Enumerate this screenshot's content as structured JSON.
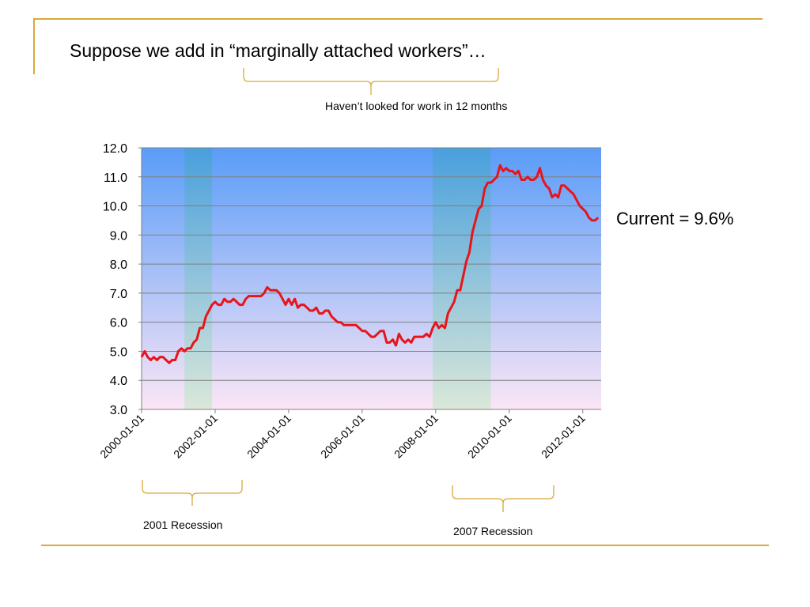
{
  "slide": {
    "title": "Suppose we add in “marginally attached workers”…",
    "bracket_note": "Haven’t looked for work in 12 months",
    "current_label": "Current = 9.6%",
    "recession_labels": [
      "2001 Recession",
      "2007 Recession"
    ]
  },
  "colors": {
    "accent": "#dba83a",
    "line": "#e8141b",
    "plot_top": "#5a9cf8",
    "plot_bottom": "#fbe6f6",
    "recession_top": "#46a0d8",
    "recession_bottom": "#d4e8d4",
    "gridline": "#808080"
  },
  "chart_data": {
    "type": "line",
    "title": "",
    "xlabel": "",
    "ylabel": "",
    "ylim": [
      3.0,
      12.0
    ],
    "yticks": [
      "3.0",
      "4.0",
      "5.0",
      "6.0",
      "7.0",
      "8.0",
      "9.0",
      "10.0",
      "11.0",
      "12.0"
    ],
    "xticks": [
      "2000-01-01",
      "2002-01-01",
      "2004-01-01",
      "2006-01-01",
      "2008-01-01",
      "2010-01-01",
      "2012-01-01"
    ],
    "grid": true,
    "legend": "none",
    "recessions": [
      {
        "start": "2001-03",
        "end": "2001-11"
      },
      {
        "start": "2007-12",
        "end": "2009-06"
      }
    ],
    "series": [
      {
        "x": [
          "2000-01",
          "2000-02",
          "2000-03",
          "2000-04",
          "2000-05",
          "2000-06",
          "2000-07",
          "2000-08",
          "2000-09",
          "2000-10",
          "2000-11",
          "2000-12",
          "2001-01",
          "2001-02",
          "2001-03",
          "2001-04",
          "2001-05",
          "2001-06",
          "2001-07",
          "2001-08",
          "2001-09",
          "2001-10",
          "2001-11",
          "2001-12",
          "2002-01",
          "2002-02",
          "2002-03",
          "2002-04",
          "2002-05",
          "2002-06",
          "2002-07",
          "2002-08",
          "2002-09",
          "2002-10",
          "2002-11",
          "2002-12",
          "2003-01",
          "2003-02",
          "2003-03",
          "2003-04",
          "2003-05",
          "2003-06",
          "2003-07",
          "2003-08",
          "2003-09",
          "2003-10",
          "2003-11",
          "2003-12",
          "2004-01",
          "2004-02",
          "2004-03",
          "2004-04",
          "2004-05",
          "2004-06",
          "2004-07",
          "2004-08",
          "2004-09",
          "2004-10",
          "2004-11",
          "2004-12",
          "2005-01",
          "2005-02",
          "2005-03",
          "2005-04",
          "2005-05",
          "2005-06",
          "2005-07",
          "2005-08",
          "2005-09",
          "2005-10",
          "2005-11",
          "2005-12",
          "2006-01",
          "2006-02",
          "2006-03",
          "2006-04",
          "2006-05",
          "2006-06",
          "2006-07",
          "2006-08",
          "2006-09",
          "2006-10",
          "2006-11",
          "2006-12",
          "2007-01",
          "2007-02",
          "2007-03",
          "2007-04",
          "2007-05",
          "2007-06",
          "2007-07",
          "2007-08",
          "2007-09",
          "2007-10",
          "2007-11",
          "2007-12",
          "2008-01",
          "2008-02",
          "2008-03",
          "2008-04",
          "2008-05",
          "2008-06",
          "2008-07",
          "2008-08",
          "2008-09",
          "2008-10",
          "2008-11",
          "2008-12",
          "2009-01",
          "2009-02",
          "2009-03",
          "2009-04",
          "2009-05",
          "2009-06",
          "2009-07",
          "2009-08",
          "2009-09",
          "2009-10",
          "2009-11",
          "2009-12",
          "2010-01",
          "2010-02",
          "2010-03",
          "2010-04",
          "2010-05",
          "2010-06",
          "2010-07",
          "2010-08",
          "2010-09",
          "2010-10",
          "2010-11",
          "2010-12",
          "2011-01",
          "2011-02",
          "2011-03",
          "2011-04",
          "2011-05",
          "2011-06",
          "2011-07",
          "2011-08",
          "2011-09",
          "2011-10",
          "2011-11",
          "2011-12",
          "2012-01",
          "2012-02",
          "2012-03",
          "2012-04",
          "2012-05",
          "2012-06"
        ],
        "values": [
          4.8,
          5.0,
          4.8,
          4.7,
          4.8,
          4.7,
          4.8,
          4.8,
          4.7,
          4.6,
          4.7,
          4.7,
          5.0,
          5.1,
          5.0,
          5.1,
          5.1,
          5.3,
          5.4,
          5.8,
          5.8,
          6.2,
          6.4,
          6.6,
          6.7,
          6.6,
          6.6,
          6.8,
          6.7,
          6.7,
          6.8,
          6.7,
          6.6,
          6.6,
          6.8,
          6.9,
          6.9,
          6.9,
          6.9,
          6.9,
          7.0,
          7.2,
          7.1,
          7.1,
          7.1,
          7.0,
          6.8,
          6.6,
          6.8,
          6.6,
          6.8,
          6.5,
          6.6,
          6.6,
          6.5,
          6.4,
          6.4,
          6.5,
          6.3,
          6.3,
          6.4,
          6.4,
          6.2,
          6.1,
          6.0,
          6.0,
          5.9,
          5.9,
          5.9,
          5.9,
          5.9,
          5.8,
          5.7,
          5.7,
          5.6,
          5.5,
          5.5,
          5.6,
          5.7,
          5.7,
          5.3,
          5.3,
          5.4,
          5.2,
          5.6,
          5.4,
          5.3,
          5.4,
          5.3,
          5.5,
          5.5,
          5.5,
          5.5,
          5.6,
          5.5,
          5.8,
          6.0,
          5.8,
          5.9,
          5.8,
          6.3,
          6.5,
          6.7,
          7.1,
          7.1,
          7.6,
          8.1,
          8.4,
          9.1,
          9.5,
          9.9,
          10.0,
          10.6,
          10.8,
          10.8,
          10.9,
          11.0,
          11.4,
          11.2,
          11.3,
          11.2,
          11.2,
          11.1,
          11.2,
          10.9,
          10.9,
          11.0,
          10.9,
          10.9,
          11.0,
          11.3,
          10.9,
          10.7,
          10.6,
          10.3,
          10.4,
          10.3,
          10.7,
          10.7,
          10.6,
          10.5,
          10.4,
          10.2,
          10.0,
          9.9,
          9.8,
          9.6,
          9.5,
          9.5,
          9.6
        ]
      }
    ]
  }
}
